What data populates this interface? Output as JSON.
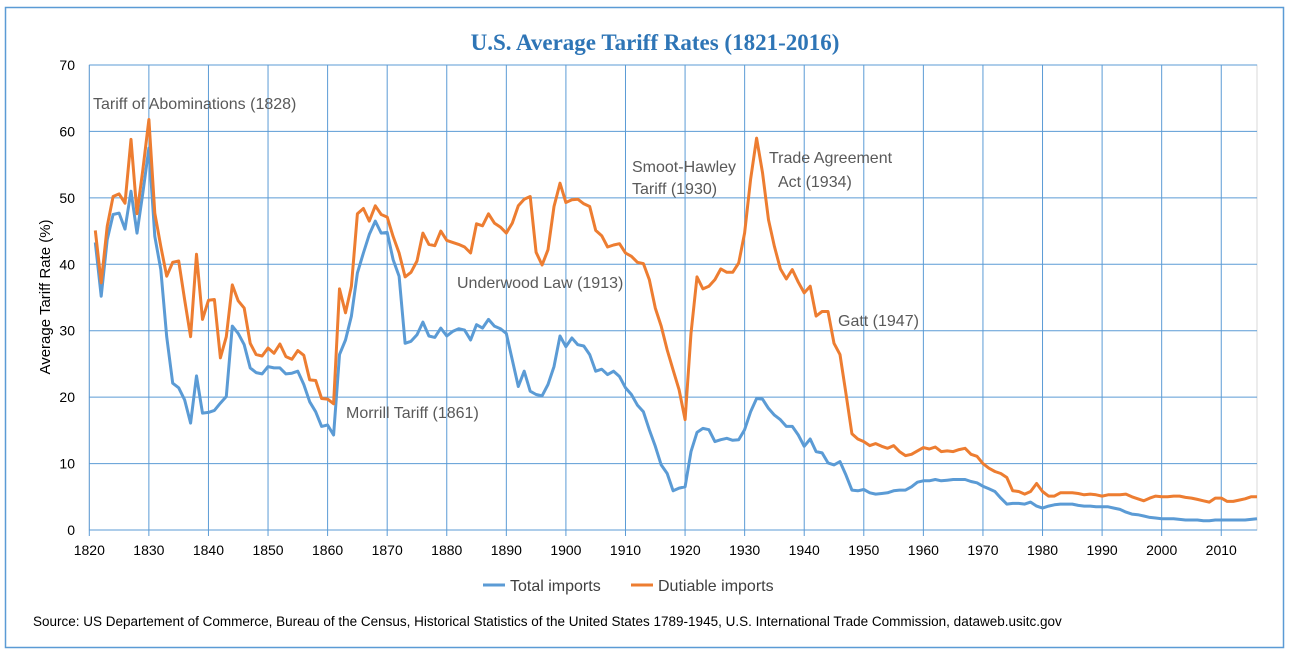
{
  "chart_data": {
    "type": "line",
    "title": "U.S. Average Tariff Rates (1821-2016)",
    "ylabel": "Average Tariff Rate (%)",
    "xlabel": "",
    "ylim": [
      0,
      70
    ],
    "xlim": [
      1820,
      2016
    ],
    "grid": true,
    "legend_position": "bottom",
    "x_tick_labels": [
      "1820",
      "1830",
      "1840",
      "1850",
      "1860",
      "1870",
      "1880",
      "1890",
      "1900",
      "1910",
      "1920",
      "1930",
      "1940",
      "1950",
      "1960",
      "1970",
      "1980",
      "1990",
      "2000",
      "2010"
    ],
    "y_tick_labels": [
      "0",
      "10",
      "20",
      "30",
      "40",
      "50",
      "60",
      "70"
    ],
    "x": [
      1821,
      1822,
      1823,
      1824,
      1825,
      1826,
      1827,
      1828,
      1829,
      1830,
      1831,
      1832,
      1833,
      1834,
      1835,
      1836,
      1837,
      1838,
      1839,
      1840,
      1841,
      1842,
      1843,
      1844,
      1845,
      1846,
      1847,
      1848,
      1849,
      1850,
      1851,
      1852,
      1853,
      1854,
      1855,
      1856,
      1857,
      1858,
      1859,
      1860,
      1861,
      1862,
      1863,
      1864,
      1865,
      1866,
      1867,
      1868,
      1869,
      1870,
      1871,
      1872,
      1873,
      1874,
      1875,
      1876,
      1877,
      1878,
      1879,
      1880,
      1881,
      1882,
      1883,
      1884,
      1885,
      1886,
      1887,
      1888,
      1889,
      1890,
      1891,
      1892,
      1893,
      1894,
      1895,
      1896,
      1897,
      1898,
      1899,
      1900,
      1901,
      1902,
      1903,
      1904,
      1905,
      1906,
      1907,
      1908,
      1909,
      1910,
      1911,
      1912,
      1913,
      1914,
      1915,
      1916,
      1917,
      1918,
      1919,
      1920,
      1921,
      1922,
      1923,
      1924,
      1925,
      1926,
      1927,
      1928,
      1929,
      1930,
      1931,
      1932,
      1933,
      1934,
      1935,
      1936,
      1937,
      1938,
      1939,
      1940,
      1941,
      1942,
      1943,
      1944,
      1945,
      1946,
      1947,
      1948,
      1949,
      1950,
      1951,
      1952,
      1953,
      1954,
      1955,
      1956,
      1957,
      1958,
      1959,
      1960,
      1961,
      1962,
      1963,
      1964,
      1965,
      1966,
      1967,
      1968,
      1969,
      1970,
      1971,
      1972,
      1973,
      1974,
      1975,
      1976,
      1977,
      1978,
      1979,
      1980,
      1981,
      1982,
      1983,
      1984,
      1985,
      1986,
      1987,
      1988,
      1989,
      1990,
      1991,
      1992,
      1993,
      1994,
      1995,
      1996,
      1997,
      1998,
      1999,
      2000,
      2001,
      2002,
      2003,
      2004,
      2005,
      2006,
      2007,
      2008,
      2009,
      2010,
      2011,
      2012,
      2013,
      2014,
      2015,
      2016
    ],
    "series": [
      {
        "name": "Total imports",
        "color": "#5b9bd5",
        "values": [
          43.3,
          35.2,
          43.7,
          47.5,
          47.7,
          45.3,
          51.0,
          44.7,
          50.8,
          57.5,
          44.2,
          39.2,
          29.1,
          22.1,
          21.4,
          19.6,
          16.1,
          23.2,
          17.6,
          17.7,
          18.0,
          19.1,
          20.1,
          30.7,
          29.6,
          27.9,
          24.4,
          23.7,
          23.5,
          24.6,
          24.4,
          24.4,
          23.5,
          23.6,
          23.9,
          21.9,
          19.3,
          17.8,
          15.6,
          15.8,
          14.3,
          26.4,
          28.6,
          32.2,
          38.7,
          41.7,
          44.5,
          46.5,
          44.7,
          44.8,
          40.7,
          38.2,
          28.1,
          28.4,
          29.4,
          31.3,
          29.2,
          29.0,
          30.4,
          29.2,
          29.9,
          30.3,
          30.1,
          28.6,
          30.9,
          30.4,
          31.7,
          30.7,
          30.3,
          29.6,
          25.6,
          21.6,
          23.9,
          20.9,
          20.4,
          20.2,
          21.9,
          24.6,
          29.2,
          27.6,
          28.9,
          27.9,
          27.7,
          26.4,
          23.9,
          24.2,
          23.4,
          23.9,
          23.1,
          21.4,
          20.4,
          18.8,
          17.8,
          15.1,
          12.6,
          9.8,
          8.5,
          5.9,
          6.3,
          6.5,
          11.8,
          14.7,
          15.3,
          15.1,
          13.3,
          13.6,
          13.8,
          13.5,
          13.6,
          15.1,
          17.8,
          19.8,
          19.7,
          18.3,
          17.3,
          16.6,
          15.6,
          15.6,
          14.3,
          12.6,
          13.7,
          11.8,
          11.6,
          10.1,
          9.8,
          10.3,
          8.3,
          6.0,
          5.9,
          6.1,
          5.6,
          5.4,
          5.5,
          5.6,
          5.9,
          6.0,
          6.0,
          6.5,
          7.2,
          7.4,
          7.4,
          7.6,
          7.4,
          7.5,
          7.6,
          7.6,
          7.6,
          7.3,
          7.1,
          6.6,
          6.2,
          5.8,
          4.8,
          3.9,
          4.0,
          4.0,
          3.9,
          4.2,
          3.6,
          3.3,
          3.6,
          3.8,
          3.9,
          3.9,
          3.9,
          3.7,
          3.6,
          3.6,
          3.5,
          3.5,
          3.5,
          3.3,
          3.1,
          2.7,
          2.4,
          2.3,
          2.1,
          1.9,
          1.8,
          1.7,
          1.7,
          1.7,
          1.6,
          1.5,
          1.5,
          1.5,
          1.4,
          1.4,
          1.5,
          1.5,
          1.5,
          1.5,
          1.5,
          1.5,
          1.6,
          1.7
        ]
      },
      {
        "name": "Dutiable imports",
        "color": "#ed7d31",
        "values": [
          45.1,
          37.2,
          45.7,
          50.2,
          50.6,
          49.2,
          58.8,
          47.6,
          54.3,
          61.8,
          47.7,
          42.7,
          38.2,
          40.3,
          40.5,
          34.7,
          29.1,
          41.5,
          31.7,
          34.6,
          34.7,
          25.9,
          29.1,
          36.9,
          34.5,
          33.4,
          28.1,
          26.4,
          26.2,
          27.4,
          26.6,
          28.0,
          26.1,
          25.7,
          27.0,
          26.3,
          22.6,
          22.5,
          19.8,
          19.7,
          19.0,
          36.3,
          32.7,
          36.7,
          47.6,
          48.4,
          46.5,
          48.8,
          47.5,
          47.1,
          44.2,
          41.7,
          38.1,
          38.8,
          40.5,
          44.7,
          43.0,
          42.8,
          45.0,
          43.6,
          43.3,
          43.0,
          42.6,
          41.7,
          46.1,
          45.8,
          47.6,
          46.2,
          45.6,
          44.7,
          46.2,
          48.8,
          49.8,
          50.2,
          41.8,
          39.9,
          42.2,
          48.7,
          52.2,
          49.3,
          49.7,
          49.8,
          49.1,
          48.7,
          45.1,
          44.3,
          42.6,
          42.9,
          43.1,
          41.7,
          41.2,
          40.3,
          40.1,
          37.7,
          33.4,
          30.7,
          27.1,
          24.1,
          21.1,
          16.6,
          29.6,
          38.1,
          36.3,
          36.7,
          37.7,
          39.3,
          38.8,
          38.8,
          40.2,
          44.7,
          52.8,
          59.0,
          53.8,
          46.7,
          42.7,
          39.3,
          37.8,
          39.2,
          37.3,
          35.7,
          36.7,
          32.2,
          32.9,
          32.9,
          28.1,
          26.4,
          20.6,
          14.5,
          13.7,
          13.3,
          12.7,
          13.0,
          12.6,
          12.3,
          12.7,
          11.8,
          11.2,
          11.4,
          11.9,
          12.4,
          12.2,
          12.5,
          11.8,
          11.9,
          11.8,
          12.1,
          12.3,
          11.4,
          11.1,
          10.0,
          9.3,
          8.8,
          8.5,
          7.9,
          5.9,
          5.8,
          5.4,
          5.8,
          7.0,
          5.8,
          5.1,
          5.1,
          5.6,
          5.6,
          5.6,
          5.5,
          5.3,
          5.4,
          5.3,
          5.1,
          5.3,
          5.3,
          5.3,
          5.4,
          5.0,
          4.7,
          4.4,
          4.8,
          5.1,
          5.0,
          5.0,
          5.1,
          5.1,
          4.9,
          4.8,
          4.6,
          4.4,
          4.2,
          4.8,
          4.8,
          4.3,
          4.3,
          4.5,
          4.7,
          5.0,
          5.0
        ]
      }
    ],
    "annotations": {
      "abominations": "Tariff of Abominations (1828)",
      "smoot_1": "Smoot-Hawley",
      "smoot_2": "Tariff (1930)",
      "trade_1": "Trade Agreement",
      "trade_2": "Act (1934)",
      "underwood": "Underwood  Law (1913)",
      "gatt": "Gatt (1947)",
      "morrill": "Morrill Tariff  (1861)"
    },
    "source": "Source: US Departement of Commerce, Bureau of the Census, Historical Statistics of the United States 1789-1945, U.S. International Trade Commission, dataweb.usitc.gov"
  }
}
